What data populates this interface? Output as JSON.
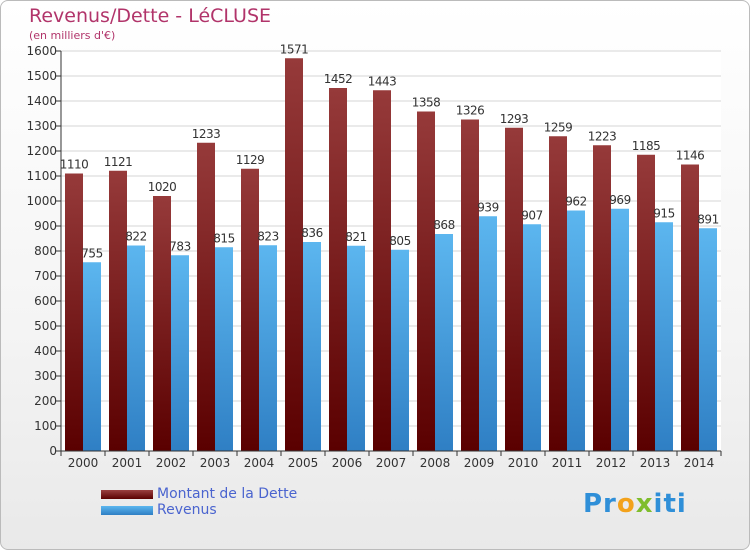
{
  "header": {
    "title": "Revenus/Dette - LéCLUSE",
    "subtitle": "(en milliers d'€)"
  },
  "legend": {
    "items": [
      {
        "label": "Montant de la Dette",
        "color": "#7a1414"
      },
      {
        "label": "Revenus",
        "color": "#4aa6e6"
      }
    ]
  },
  "logo": {
    "text": "Proxiti"
  },
  "chart_data": {
    "type": "bar",
    "categories": [
      "2000",
      "2001",
      "2002",
      "2003",
      "2004",
      "2005",
      "2006",
      "2007",
      "2008",
      "2009",
      "2010",
      "2011",
      "2012",
      "2013",
      "2014"
    ],
    "series": [
      {
        "name": "Montant de la Dette",
        "color": "#7a1414",
        "values": [
          1110,
          1121,
          1020,
          1233,
          1129,
          1571,
          1452,
          1443,
          1358,
          1326,
          1293,
          1259,
          1223,
          1185,
          1146
        ]
      },
      {
        "name": "Revenus",
        "color": "#4aa6e6",
        "values": [
          755,
          822,
          783,
          815,
          823,
          836,
          821,
          805,
          868,
          939,
          907,
          962,
          969,
          915,
          891
        ]
      }
    ],
    "ylim": [
      0,
      1600
    ],
    "ytick_step": 100,
    "grid": true,
    "legend_position": "bottom-left"
  }
}
